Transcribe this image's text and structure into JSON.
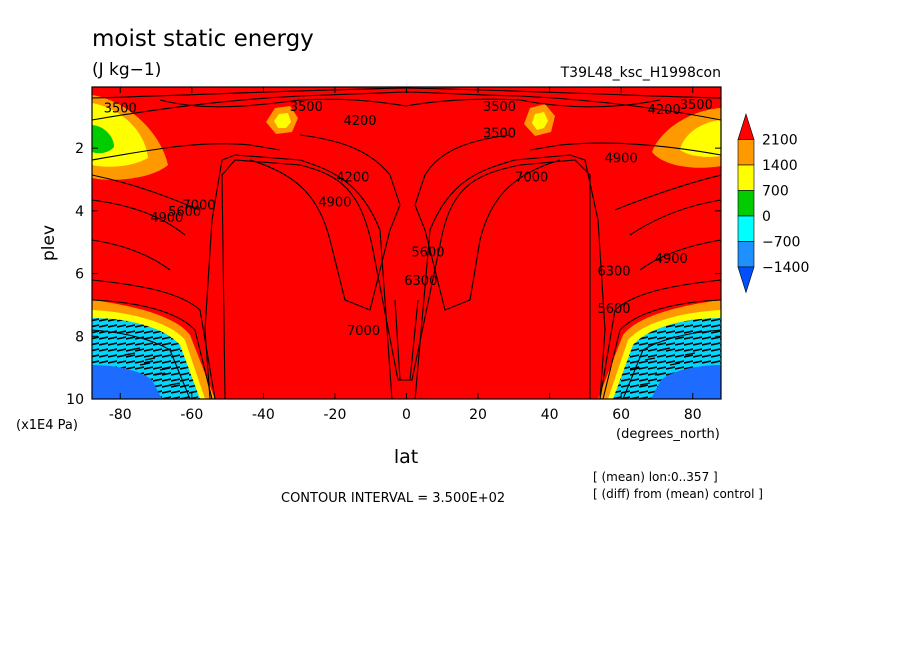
{
  "chart_data": {
    "type": "contour",
    "title": "moist static energy",
    "units": "(J kg−1)",
    "run_label": "T39L48_ksc_H1998con",
    "xlabel": "lat",
    "x_units": "(degrees_north)",
    "ylabel": "plev",
    "y_units": "(x1E4 Pa)",
    "xlim": [
      -87.9,
      87.9
    ],
    "ylim": [
      0.05,
      10
    ],
    "y_inverted": true,
    "x_ticks": [
      -80,
      -60,
      -40,
      -20,
      0,
      20,
      40,
      60,
      80
    ],
    "y_ticks": [
      2,
      4,
      6,
      8,
      10
    ],
    "colorbar": {
      "levels": [
        2100,
        1400,
        700,
        0,
        -700,
        -1400
      ],
      "colors": [
        "#ff0000",
        "#ff9900",
        "#ffff00",
        "#00cc00",
        "#00ffff",
        "#1e90ff",
        "#0050ff"
      ]
    },
    "contour_labels": [
      {
        "text": "3500",
        "lat": -80,
        "plev": 0.7
      },
      {
        "text": "3500",
        "lat": -28,
        "plev": 0.65
      },
      {
        "text": "4200",
        "lat": -13,
        "plev": 1.1
      },
      {
        "text": "3500",
        "lat": 26,
        "plev": 0.65
      },
      {
        "text": "3500",
        "lat": 26,
        "plev": 1.5
      },
      {
        "text": "4200",
        "lat": 72,
        "plev": 0.75
      },
      {
        "text": "3500",
        "lat": 81,
        "plev": 0.6
      },
      {
        "text": "4900",
        "lat": 60,
        "plev": 2.3
      },
      {
        "text": "4200",
        "lat": -15,
        "plev": 2.9
      },
      {
        "text": "4900",
        "lat": -20,
        "plev": 3.7
      },
      {
        "text": "7000",
        "lat": 35,
        "plev": 2.9
      },
      {
        "text": "4900",
        "lat": -67,
        "plev": 4.2
      },
      {
        "text": "5600",
        "lat": -62,
        "plev": 4.0
      },
      {
        "text": "7000",
        "lat": -58,
        "plev": 3.8
      },
      {
        "text": "5600",
        "lat": 6,
        "plev": 5.3
      },
      {
        "text": "6300",
        "lat": 4,
        "plev": 6.2
      },
      {
        "text": "7000",
        "lat": -12,
        "plev": 7.8
      },
      {
        "text": "4900",
        "lat": 74,
        "plev": 5.5
      },
      {
        "text": "6300",
        "lat": 58,
        "plev": 5.9
      },
      {
        "text": "5600",
        "lat": 58,
        "plev": 7.1
      }
    ],
    "contour_interval_text": "CONTOUR INTERVAL = 3.500E+02",
    "notes": [
      "[ (mean) lon:0..357 ]",
      "[ (diff) from (mean) control ]"
    ]
  }
}
